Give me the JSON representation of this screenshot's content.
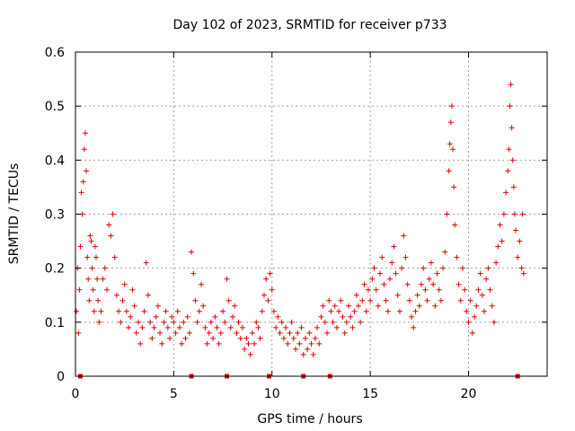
{
  "chart_data": {
    "type": "scatter",
    "title": "Day 102 of 2023, SRMTID for receiver p733",
    "xlabel": "GPS time / hours",
    "ylabel": "SRMTID / TECUs",
    "xlim": [
      0,
      24
    ],
    "ylim": [
      0,
      0.6
    ],
    "xticks": [
      0,
      5,
      10,
      15,
      20
    ],
    "xtick_labels": [
      "0",
      "5",
      "10",
      "15",
      "20"
    ],
    "yticks": [
      0,
      0.1,
      0.2,
      0.3,
      0.4,
      0.5,
      0.6
    ],
    "ytick_labels": [
      "0",
      "0.1",
      "0.2",
      "0.3",
      "0.4",
      "0.5",
      "0.6"
    ],
    "grid": true,
    "marker": "plus",
    "color": "#e00000",
    "series": [
      {
        "name": "SRMTID",
        "points": [
          [
            0.05,
            0.12
          ],
          [
            0.1,
            0.2
          ],
          [
            0.15,
            0.08
          ],
          [
            0.2,
            0.16
          ],
          [
            0.25,
            0.24
          ],
          [
            0.3,
            0.34
          ],
          [
            0.35,
            0.3
          ],
          [
            0.4,
            0.36
          ],
          [
            0.45,
            0.42
          ],
          [
            0.5,
            0.45
          ],
          [
            0.55,
            0.38
          ],
          [
            0.6,
            0.22
          ],
          [
            0.65,
            0.18
          ],
          [
            0.7,
            0.14
          ],
          [
            0.75,
            0.26
          ],
          [
            0.8,
            0.25
          ],
          [
            0.85,
            0.2
          ],
          [
            0.9,
            0.16
          ],
          [
            0.95,
            0.12
          ],
          [
            1.0,
            0.24
          ],
          [
            1.05,
            0.22
          ],
          [
            1.1,
            0.18
          ],
          [
            1.15,
            0.14
          ],
          [
            1.2,
            0.1
          ],
          [
            1.3,
            0.12
          ],
          [
            1.4,
            0.18
          ],
          [
            1.5,
            0.2
          ],
          [
            1.6,
            0.16
          ],
          [
            1.7,
            0.28
          ],
          [
            1.8,
            0.26
          ],
          [
            1.9,
            0.3
          ],
          [
            2.0,
            0.22
          ],
          [
            2.1,
            0.15
          ],
          [
            2.2,
            0.12
          ],
          [
            2.3,
            0.1
          ],
          [
            2.4,
            0.14
          ],
          [
            2.5,
            0.17
          ],
          [
            2.6,
            0.12
          ],
          [
            2.7,
            0.09
          ],
          [
            2.8,
            0.11
          ],
          [
            2.9,
            0.16
          ],
          [
            3.0,
            0.13
          ],
          [
            3.1,
            0.08
          ],
          [
            3.2,
            0.1
          ],
          [
            3.3,
            0.06
          ],
          [
            3.4,
            0.09
          ],
          [
            3.5,
            0.12
          ],
          [
            3.6,
            0.21
          ],
          [
            3.7,
            0.15
          ],
          [
            3.8,
            0.1
          ],
          [
            3.9,
            0.07
          ],
          [
            4.0,
            0.09
          ],
          [
            4.1,
            0.11
          ],
          [
            4.2,
            0.13
          ],
          [
            4.3,
            0.08
          ],
          [
            4.4,
            0.06
          ],
          [
            4.5,
            0.1
          ],
          [
            4.6,
            0.12
          ],
          [
            4.7,
            0.09
          ],
          [
            4.8,
            0.07
          ],
          [
            4.9,
            0.11
          ],
          [
            5.0,
            0.1
          ],
          [
            5.1,
            0.08
          ],
          [
            5.2,
            0.12
          ],
          [
            5.3,
            0.09
          ],
          [
            5.4,
            0.06
          ],
          [
            5.5,
            0.1
          ],
          [
            5.6,
            0.07
          ],
          [
            5.7,
            0.11
          ],
          [
            5.8,
            0.08
          ],
          [
            5.9,
            0.23
          ],
          [
            6.0,
            0.19
          ],
          [
            6.1,
            0.14
          ],
          [
            6.2,
            0.1
          ],
          [
            6.3,
            0.12
          ],
          [
            6.4,
            0.17
          ],
          [
            6.5,
            0.13
          ],
          [
            6.6,
            0.09
          ],
          [
            6.7,
            0.06
          ],
          [
            6.8,
            0.08
          ],
          [
            6.9,
            0.1
          ],
          [
            7.0,
            0.07
          ],
          [
            7.1,
            0.11
          ],
          [
            7.2,
            0.09
          ],
          [
            7.3,
            0.06
          ],
          [
            7.4,
            0.08
          ],
          [
            7.5,
            0.12
          ],
          [
            7.6,
            0.1
          ],
          [
            7.7,
            0.18
          ],
          [
            7.8,
            0.14
          ],
          [
            7.9,
            0.09
          ],
          [
            8.0,
            0.11
          ],
          [
            8.1,
            0.13
          ],
          [
            8.2,
            0.08
          ],
          [
            8.3,
            0.1
          ],
          [
            8.4,
            0.07
          ],
          [
            8.5,
            0.09
          ],
          [
            8.6,
            0.05
          ],
          [
            8.7,
            0.07
          ],
          [
            8.8,
            0.06
          ],
          [
            8.9,
            0.04
          ],
          [
            9.0,
            0.08
          ],
          [
            9.1,
            0.06
          ],
          [
            9.2,
            0.1
          ],
          [
            9.3,
            0.09
          ],
          [
            9.4,
            0.07
          ],
          [
            9.5,
            0.12
          ],
          [
            9.6,
            0.15
          ],
          [
            9.7,
            0.18
          ],
          [
            9.8,
            0.14
          ],
          [
            9.9,
            0.19
          ],
          [
            10.0,
            0.16
          ],
          [
            10.1,
            0.12
          ],
          [
            10.2,
            0.09
          ],
          [
            10.3,
            0.11
          ],
          [
            10.4,
            0.08
          ],
          [
            10.5,
            0.1
          ],
          [
            10.6,
            0.07
          ],
          [
            10.7,
            0.09
          ],
          [
            10.8,
            0.06
          ],
          [
            10.9,
            0.08
          ],
          [
            11.0,
            0.1
          ],
          [
            11.1,
            0.07
          ],
          [
            11.2,
            0.05
          ],
          [
            11.3,
            0.08
          ],
          [
            11.4,
            0.06
          ],
          [
            11.5,
            0.09
          ],
          [
            11.6,
            0.04
          ],
          [
            11.7,
            0.07
          ],
          [
            11.8,
            0.05
          ],
          [
            11.9,
            0.08
          ],
          [
            12.0,
            0.06
          ],
          [
            12.1,
            0.04
          ],
          [
            12.2,
            0.07
          ],
          [
            12.3,
            0.09
          ],
          [
            12.4,
            0.06
          ],
          [
            12.5,
            0.11
          ],
          [
            12.6,
            0.13
          ],
          [
            12.7,
            0.1
          ],
          [
            12.8,
            0.08
          ],
          [
            12.9,
            0.14
          ],
          [
            13.0,
            0.12
          ],
          [
            13.1,
            0.1
          ],
          [
            13.2,
            0.13
          ],
          [
            13.3,
            0.09
          ],
          [
            13.4,
            0.12
          ],
          [
            13.5,
            0.14
          ],
          [
            13.6,
            0.11
          ],
          [
            13.7,
            0.08
          ],
          [
            13.8,
            0.1
          ],
          [
            13.9,
            0.13
          ],
          [
            14.0,
            0.11
          ],
          [
            14.1,
            0.09
          ],
          [
            14.2,
            0.12
          ],
          [
            14.3,
            0.15
          ],
          [
            14.4,
            0.13
          ],
          [
            14.5,
            0.1
          ],
          [
            14.6,
            0.14
          ],
          [
            14.7,
            0.17
          ],
          [
            14.8,
            0.12
          ],
          [
            14.9,
            0.16
          ],
          [
            15.0,
            0.14
          ],
          [
            15.1,
            0.18
          ],
          [
            15.2,
            0.2
          ],
          [
            15.3,
            0.16
          ],
          [
            15.4,
            0.13
          ],
          [
            15.5,
            0.19
          ],
          [
            15.6,
            0.22
          ],
          [
            15.7,
            0.17
          ],
          [
            15.8,
            0.14
          ],
          [
            15.9,
            0.12
          ],
          [
            16.0,
            0.18
          ],
          [
            16.1,
            0.21
          ],
          [
            16.2,
            0.24
          ],
          [
            16.3,
            0.19
          ],
          [
            16.4,
            0.15
          ],
          [
            16.5,
            0.12
          ],
          [
            16.6,
            0.2
          ],
          [
            16.7,
            0.26
          ],
          [
            16.8,
            0.22
          ],
          [
            16.9,
            0.17
          ],
          [
            17.0,
            0.14
          ],
          [
            17.1,
            0.11
          ],
          [
            17.2,
            0.09
          ],
          [
            17.3,
            0.12
          ],
          [
            17.4,
            0.15
          ],
          [
            17.5,
            0.13
          ],
          [
            17.6,
            0.17
          ],
          [
            17.7,
            0.2
          ],
          [
            17.8,
            0.16
          ],
          [
            17.9,
            0.14
          ],
          [
            18.0,
            0.18
          ],
          [
            18.1,
            0.21
          ],
          [
            18.2,
            0.17
          ],
          [
            18.3,
            0.13
          ],
          [
            18.4,
            0.19
          ],
          [
            18.5,
            0.16
          ],
          [
            18.6,
            0.14
          ],
          [
            18.7,
            0.2
          ],
          [
            18.8,
            0.23
          ],
          [
            18.9,
            0.3
          ],
          [
            19.0,
            0.38
          ],
          [
            19.05,
            0.43
          ],
          [
            19.1,
            0.47
          ],
          [
            19.15,
            0.5
          ],
          [
            19.2,
            0.42
          ],
          [
            19.25,
            0.35
          ],
          [
            19.3,
            0.28
          ],
          [
            19.4,
            0.22
          ],
          [
            19.5,
            0.17
          ],
          [
            19.6,
            0.14
          ],
          [
            19.7,
            0.2
          ],
          [
            19.8,
            0.16
          ],
          [
            19.9,
            0.12
          ],
          [
            20.0,
            0.1
          ],
          [
            20.1,
            0.14
          ],
          [
            20.2,
            0.08
          ],
          [
            20.3,
            0.11
          ],
          [
            20.4,
            0.13
          ],
          [
            20.5,
            0.16
          ],
          [
            20.6,
            0.19
          ],
          [
            20.7,
            0.15
          ],
          [
            20.8,
            0.12
          ],
          [
            20.9,
            0.18
          ],
          [
            21.0,
            0.2
          ],
          [
            21.1,
            0.16
          ],
          [
            21.2,
            0.13
          ],
          [
            21.3,
            0.1
          ],
          [
            21.4,
            0.21
          ],
          [
            21.5,
            0.24
          ],
          [
            21.6,
            0.28
          ],
          [
            21.7,
            0.25
          ],
          [
            21.8,
            0.3
          ],
          [
            21.9,
            0.34
          ],
          [
            22.0,
            0.38
          ],
          [
            22.05,
            0.42
          ],
          [
            22.1,
            0.5
          ],
          [
            22.15,
            0.54
          ],
          [
            22.2,
            0.46
          ],
          [
            22.25,
            0.4
          ],
          [
            22.3,
            0.35
          ],
          [
            22.35,
            0.3
          ],
          [
            22.4,
            0.27
          ],
          [
            22.5,
            0.22
          ],
          [
            22.6,
            0.25
          ],
          [
            22.7,
            0.2
          ],
          [
            22.75,
            0.3
          ],
          [
            22.8,
            0.19
          ]
        ]
      }
    ],
    "zero_markers_x": [
      0.25,
      5.9,
      7.7,
      9.85,
      11.6,
      12.95,
      22.5
    ]
  }
}
